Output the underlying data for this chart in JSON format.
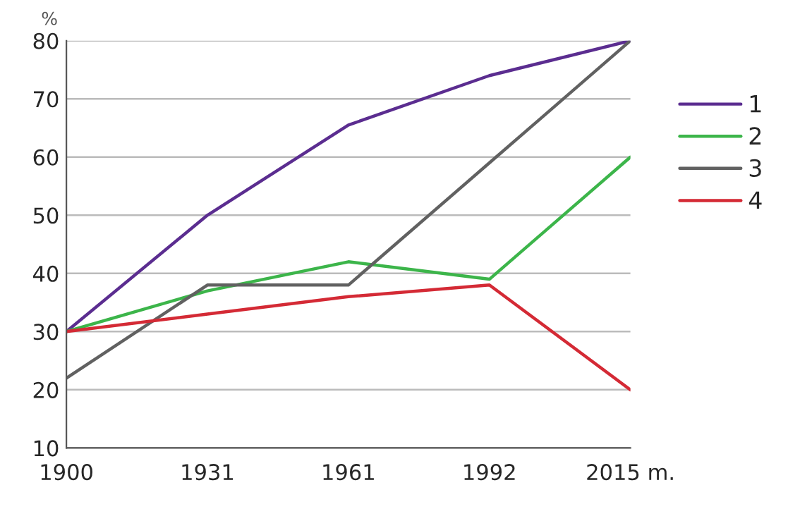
{
  "chart_data": {
    "type": "line",
    "ylabel": "%",
    "categories": [
      "1900",
      "1931",
      "1961",
      "1992",
      "2015 m."
    ],
    "ylim": [
      10,
      80
    ],
    "yticks": [
      10,
      20,
      30,
      40,
      50,
      60,
      70,
      80
    ],
    "grid": "y",
    "legend": "right",
    "marker": "none",
    "line_style": "solid",
    "series": [
      {
        "name": "1",
        "color": "#5b2d90",
        "values": [
          30,
          50,
          65.5,
          74,
          80
        ]
      },
      {
        "name": "2",
        "color": "#3cb54a",
        "values": [
          30,
          37,
          42,
          39,
          60
        ]
      },
      {
        "name": "3",
        "color": "#616161",
        "values": [
          22,
          38,
          38,
          59,
          80
        ]
      },
      {
        "name": "4",
        "color": "#d42a35",
        "values": [
          30,
          33,
          36,
          38,
          20
        ]
      }
    ]
  }
}
